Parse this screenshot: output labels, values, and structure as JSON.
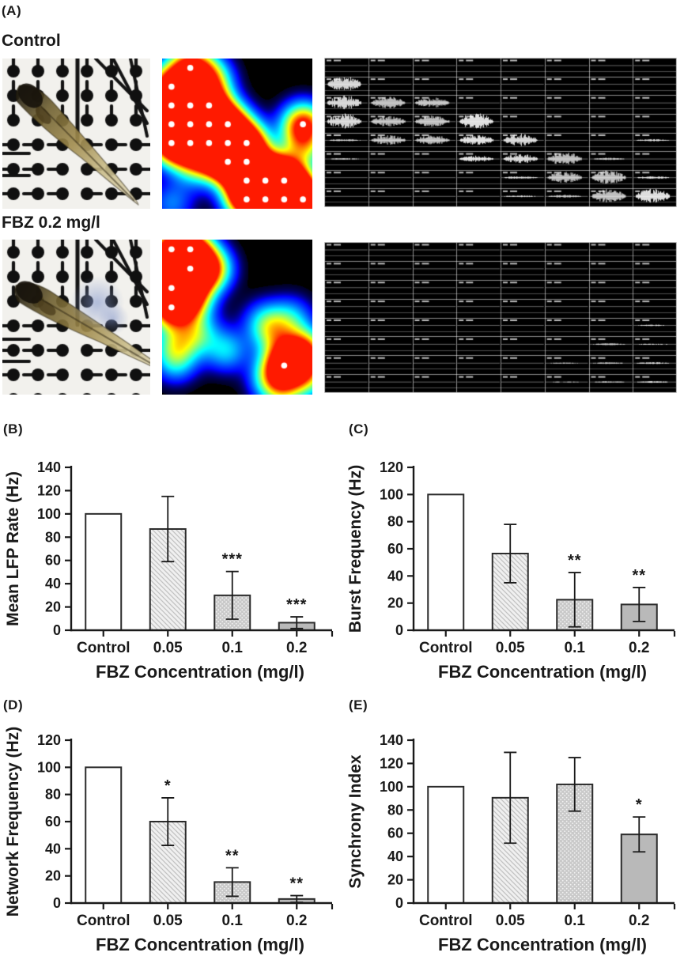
{
  "panel_a": {
    "label": "(A)",
    "grid_size": 8,
    "rows": [
      {
        "id": "control",
        "title": "Control",
        "photo": {
          "name": "zebrafish-larva-on-mea-photo",
          "head_x": 27,
          "head_y": 40,
          "angle_deg": 45,
          "length": 205,
          "blue_blob": false
        },
        "heat_dots": [
          [
            1,
            0
          ],
          [
            0,
            1
          ],
          [
            0,
            2
          ],
          [
            1,
            2
          ],
          [
            2,
            2
          ],
          [
            0,
            3
          ],
          [
            1,
            3
          ],
          [
            2,
            3
          ],
          [
            3,
            3
          ],
          [
            7,
            3
          ],
          [
            0,
            4
          ],
          [
            1,
            4
          ],
          [
            2,
            4
          ],
          [
            3,
            4
          ],
          [
            4,
            4
          ],
          [
            3,
            5
          ],
          [
            4,
            5
          ],
          [
            4,
            6
          ],
          [
            5,
            6
          ],
          [
            6,
            6
          ],
          [
            4,
            7
          ],
          [
            5,
            7
          ],
          [
            6,
            7
          ],
          [
            7,
            7
          ]
        ],
        "heat_soft": [
          [
            2,
            0.6,
            0.7
          ],
          [
            1.2,
            5.3,
            0.35
          ],
          [
            0,
            7.2,
            0.28
          ],
          [
            7,
            4.3,
            0.5
          ],
          [
            5.5,
            5.8,
            0.8
          ],
          [
            6.5,
            6.8,
            0.9
          ],
          [
            2.5,
            4.6,
            0.6
          ]
        ],
        "trace_bursts": [
          [
            1,
            0,
            0.9
          ],
          [
            2,
            0,
            0.8
          ],
          [
            2,
            1,
            0.65
          ],
          [
            2,
            2,
            0.6
          ],
          [
            3,
            0,
            0.85
          ],
          [
            3,
            1,
            0.6
          ],
          [
            3,
            2,
            0.65
          ],
          [
            3,
            3,
            0.95
          ],
          [
            4,
            1,
            0.55
          ],
          [
            4,
            2,
            0.55
          ],
          [
            4,
            3,
            0.6
          ],
          [
            4,
            4,
            0.7
          ],
          [
            5,
            3,
            0.35
          ],
          [
            5,
            4,
            0.55
          ],
          [
            5,
            5,
            0.75
          ],
          [
            6,
            5,
            0.7
          ],
          [
            6,
            6,
            0.75
          ],
          [
            7,
            6,
            0.75
          ],
          [
            7,
            7,
            0.85
          ],
          [
            4,
            0,
            0.12
          ],
          [
            4,
            7,
            0.12
          ],
          [
            5,
            0,
            0.08
          ],
          [
            5,
            6,
            0.12
          ],
          [
            6,
            4,
            0.15
          ],
          [
            6,
            7,
            0.15
          ],
          [
            7,
            4,
            0.1
          ],
          [
            7,
            5,
            0.15
          ]
        ]
      },
      {
        "id": "fbz-0.2",
        "title": "FBZ 0.2 mg/l",
        "photo": {
          "name": "zebrafish-larva-on-mea-photo",
          "head_x": 24,
          "head_y": 62,
          "angle_deg": 30,
          "length": 215,
          "blue_blob": true
        },
        "heat_dots": [
          [
            0,
            0
          ],
          [
            1,
            0
          ],
          [
            1,
            1
          ],
          [
            0,
            2
          ],
          [
            0,
            3
          ],
          [
            6,
            6
          ]
        ],
        "heat_soft": [
          [
            2,
            1,
            0.85
          ],
          [
            0.5,
            1.5,
            0.9
          ],
          [
            1,
            2.5,
            0.75
          ],
          [
            1.3,
            4.3,
            0.45
          ],
          [
            0.2,
            4.9,
            0.4
          ],
          [
            0.2,
            5.8,
            0.35
          ],
          [
            2.9,
            5.2,
            0.38
          ],
          [
            4.9,
            3.7,
            0.3
          ],
          [
            5.5,
            4.3,
            0.45
          ],
          [
            6.4,
            3.5,
            0.3
          ],
          [
            7.1,
            5.2,
            0.65
          ],
          [
            6.6,
            5.6,
            0.55
          ],
          [
            5.3,
            6.7,
            0.4
          ],
          [
            7.3,
            6.6,
            0.45
          ],
          [
            5.9,
            7.3,
            0.35
          ]
        ],
        "trace_bursts": [
          [
            4,
            7,
            0.08
          ],
          [
            5,
            6,
            0.1
          ],
          [
            5,
            7,
            0.06
          ],
          [
            6,
            5,
            0.06
          ],
          [
            6,
            6,
            0.09
          ],
          [
            6,
            7,
            0.1
          ],
          [
            7,
            5,
            0.05
          ],
          [
            7,
            6,
            0.08
          ],
          [
            7,
            7,
            0.1
          ]
        ]
      }
    ]
  },
  "chart_data": [
    {
      "panel": "(B)",
      "type": "bar",
      "title": "",
      "ylabel": "Mean LFP Rate (Hz)",
      "xlabel": "FBZ Concentration (mg/l)",
      "categories": [
        "Control",
        "0.05",
        "0.1",
        "0.2"
      ],
      "values": [
        100,
        87,
        30,
        6.5
      ],
      "errors": [
        0,
        28,
        20.5,
        5
      ],
      "significance": [
        "",
        "",
        "***",
        "***"
      ],
      "ylim": [
        0,
        140
      ],
      "ytick_step": 20,
      "bar_styles": [
        "white",
        "hatch",
        "stipple",
        "gray"
      ],
      "legend": "none",
      "grid": "off"
    },
    {
      "panel": "(C)",
      "type": "bar",
      "title": "",
      "ylabel": "Burst Frequency (Hz)",
      "xlabel": "FBZ Concentration (mg/l)",
      "categories": [
        "Control",
        "0.05",
        "0.1",
        "0.2"
      ],
      "values": [
        100,
        56.5,
        22.5,
        19
      ],
      "errors": [
        0,
        21.5,
        20,
        12.5
      ],
      "significance": [
        "",
        "",
        "**",
        "**"
      ],
      "ylim": [
        0,
        120
      ],
      "ytick_step": 20,
      "bar_styles": [
        "white",
        "hatch",
        "stipple",
        "gray"
      ],
      "legend": "none",
      "grid": "off"
    },
    {
      "panel": "(D)",
      "type": "bar",
      "title": "",
      "ylabel": "Network Frequency (Hz)",
      "xlabel": "FBZ Concentration (mg/l)",
      "categories": [
        "Control",
        "0.05",
        "0.1",
        "0.2"
      ],
      "values": [
        100,
        60,
        15.5,
        3
      ],
      "errors": [
        0,
        17.5,
        10.5,
        2.5
      ],
      "significance": [
        "",
        "*",
        "**",
        "**"
      ],
      "ylim": [
        0,
        120
      ],
      "ytick_step": 20,
      "bar_styles": [
        "white",
        "hatch",
        "stipple",
        "gray"
      ],
      "legend": "none",
      "grid": "off"
    },
    {
      "panel": "(E)",
      "type": "bar",
      "title": "",
      "ylabel": "Synchrony Index",
      "xlabel": "FBZ Concentration (mg/l)",
      "categories": [
        "Control",
        "0.05",
        "0.1",
        "0.2"
      ],
      "values": [
        100,
        90.5,
        102,
        59
      ],
      "errors": [
        0,
        39,
        23,
        15
      ],
      "significance": [
        "",
        "",
        "",
        "*"
      ],
      "ylim": [
        0,
        140
      ],
      "ytick_step": 20,
      "bar_styles": [
        "white",
        "hatch",
        "stipple",
        "gray"
      ],
      "legend": "none",
      "grid": "off"
    }
  ],
  "colors": {
    "bar_border": "#2b2b2b",
    "solid_gray": "#b9b9b9",
    "hatch_bg": "#f0f0f0",
    "hatch_line": "#c2c2c2",
    "stipple_bg": "#c9c9c9",
    "stipple_dot": "#f2f2f2",
    "axis": "#1a1a1a",
    "heat_background": "#000000",
    "trace_background": "#000000"
  }
}
